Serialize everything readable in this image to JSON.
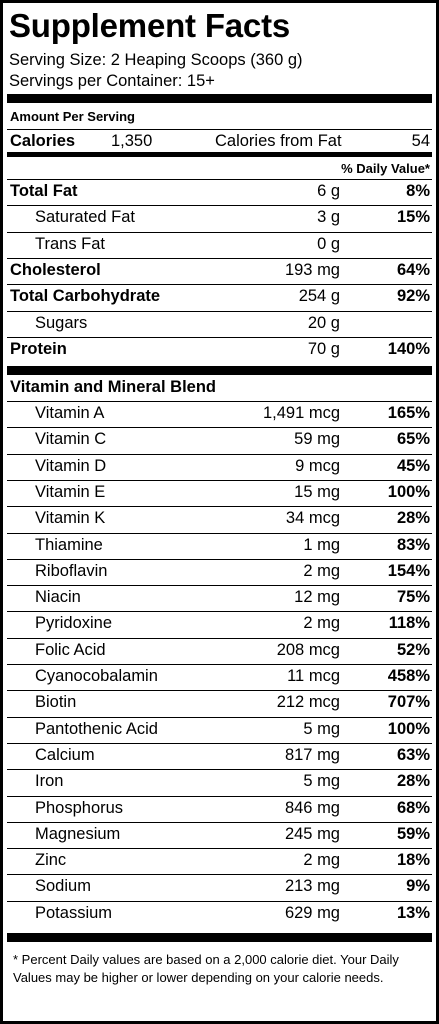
{
  "title": "Supplement Facts",
  "serving_size": "Serving Size: 2 Heaping Scoops (360 g)",
  "servings_per_container": "Servings per Container: 15+",
  "amount_per_serving": "Amount Per Serving",
  "calories": {
    "label": "Calories",
    "value": "1,350",
    "fat_label": "Calories from Fat",
    "fat_value": "54"
  },
  "daily_value_header": "% Daily Value*",
  "macros": [
    {
      "name": "Total Fat",
      "amount": "6 g",
      "dv": "8%",
      "bold": true,
      "indent": false
    },
    {
      "name": "Saturated Fat",
      "amount": "3 g",
      "dv": "15%",
      "bold": false,
      "indent": true
    },
    {
      "name": "Trans Fat",
      "amount": "0 g",
      "dv": "",
      "bold": false,
      "indent": true
    },
    {
      "name": "Cholesterol",
      "amount": "193 mg",
      "dv": "64%",
      "bold": true,
      "indent": false
    },
    {
      "name": "Total Carbohydrate",
      "amount": "254 g",
      "dv": "92%",
      "bold": true,
      "indent": false
    },
    {
      "name": "Sugars",
      "amount": "20 g",
      "dv": "",
      "bold": false,
      "indent": true
    },
    {
      "name": "Protein",
      "amount": "70 g",
      "dv": "140%",
      "bold": true,
      "indent": false
    }
  ],
  "blend_title": "Vitamin and Mineral Blend",
  "vitamins": [
    {
      "name": "Vitamin A",
      "amount": "1,491 mcg",
      "dv": "165%"
    },
    {
      "name": "Vitamin C",
      "amount": "59 mg",
      "dv": "65%"
    },
    {
      "name": "Vitamin D",
      "amount": "9 mcg",
      "dv": "45%"
    },
    {
      "name": "Vitamin E",
      "amount": "15 mg",
      "dv": "100%"
    },
    {
      "name": "Vitamin K",
      "amount": "34 mcg",
      "dv": "28%"
    },
    {
      "name": "Thiamine",
      "amount": "1 mg",
      "dv": "83%"
    },
    {
      "name": "Riboflavin",
      "amount": "2 mg",
      "dv": "154%"
    },
    {
      "name": "Niacin",
      "amount": "12 mg",
      "dv": "75%"
    },
    {
      "name": "Pyridoxine",
      "amount": "2 mg",
      "dv": "118%"
    },
    {
      "name": "Folic Acid",
      "amount": "208 mcg",
      "dv": "52%"
    },
    {
      "name": "Cyanocobalamin",
      "amount": "11 mcg",
      "dv": "458%"
    },
    {
      "name": "Biotin",
      "amount": "212 mcg",
      "dv": "707%"
    },
    {
      "name": "Pantothenic Acid",
      "amount": "5 mg",
      "dv": "100%"
    },
    {
      "name": "Calcium",
      "amount": "817 mg",
      "dv": "63%"
    },
    {
      "name": "Iron",
      "amount": "5 mg",
      "dv": "28%"
    },
    {
      "name": "Phosphorus",
      "amount": "846 mg",
      "dv": "68%"
    },
    {
      "name": "Magnesium",
      "amount": "245 mg",
      "dv": "59%"
    },
    {
      "name": "Zinc",
      "amount": "2 mg",
      "dv": "18%"
    },
    {
      "name": "Sodium",
      "amount": "213 mg",
      "dv": "9%"
    },
    {
      "name": "Potassium",
      "amount": "629 mg",
      "dv": "13%"
    }
  ],
  "footnote": "* Percent Daily values are based on a 2,000 calorie diet. Your Daily Values may be higher or lower depending on your calorie needs."
}
